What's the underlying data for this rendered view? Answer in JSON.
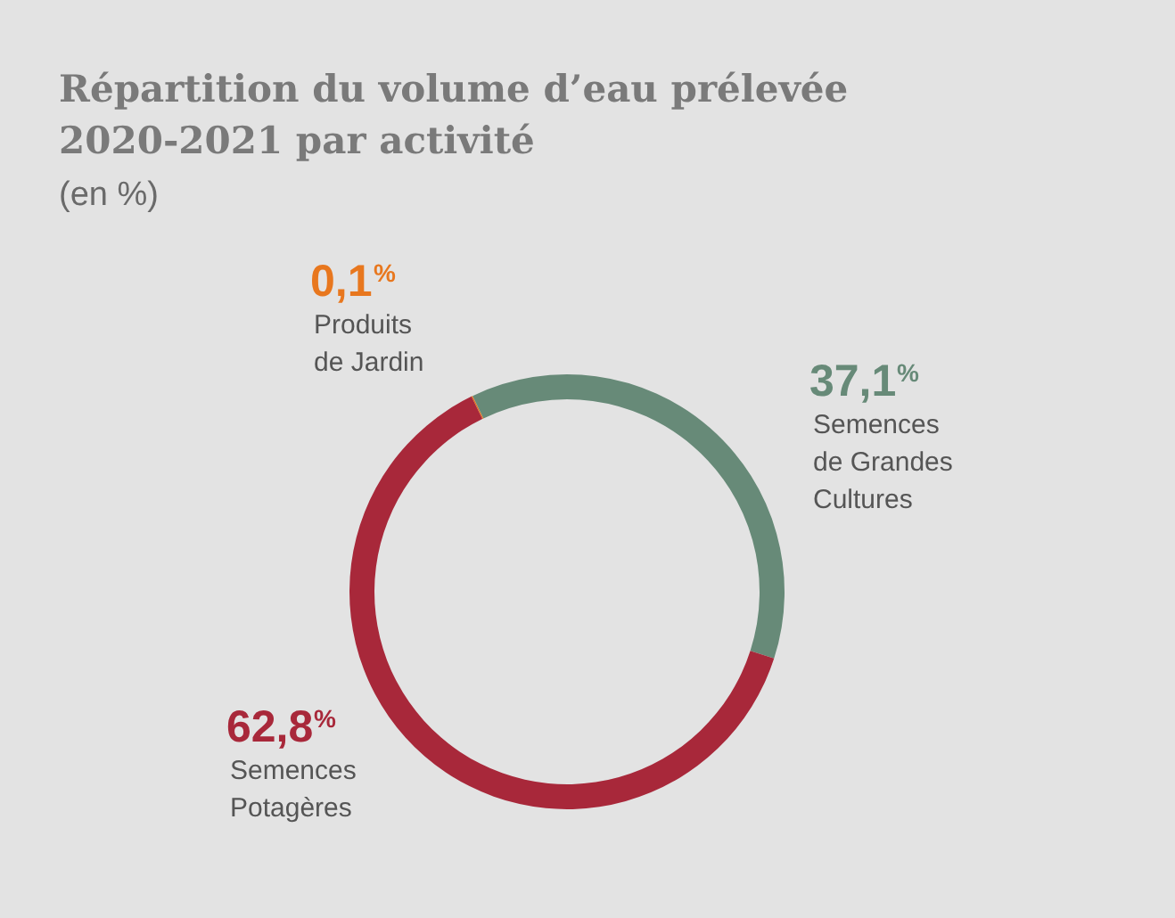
{
  "chart_data": {
    "type": "donut",
    "title": "Répartition du volume d’eau prélevée 2020-2021 par activité",
    "subtitle": "(en %)",
    "categories": [
      "Produits de Jardin",
      "Semences de Grandes Cultures",
      "Semences Potagères"
    ],
    "values": [
      0.1,
      37.1,
      62.8
    ],
    "colors": [
      "#e8771e",
      "#678a78",
      "#a8283a"
    ],
    "value_labels": [
      "0,1%",
      "37,1%",
      "62,8%"
    ]
  }
}
